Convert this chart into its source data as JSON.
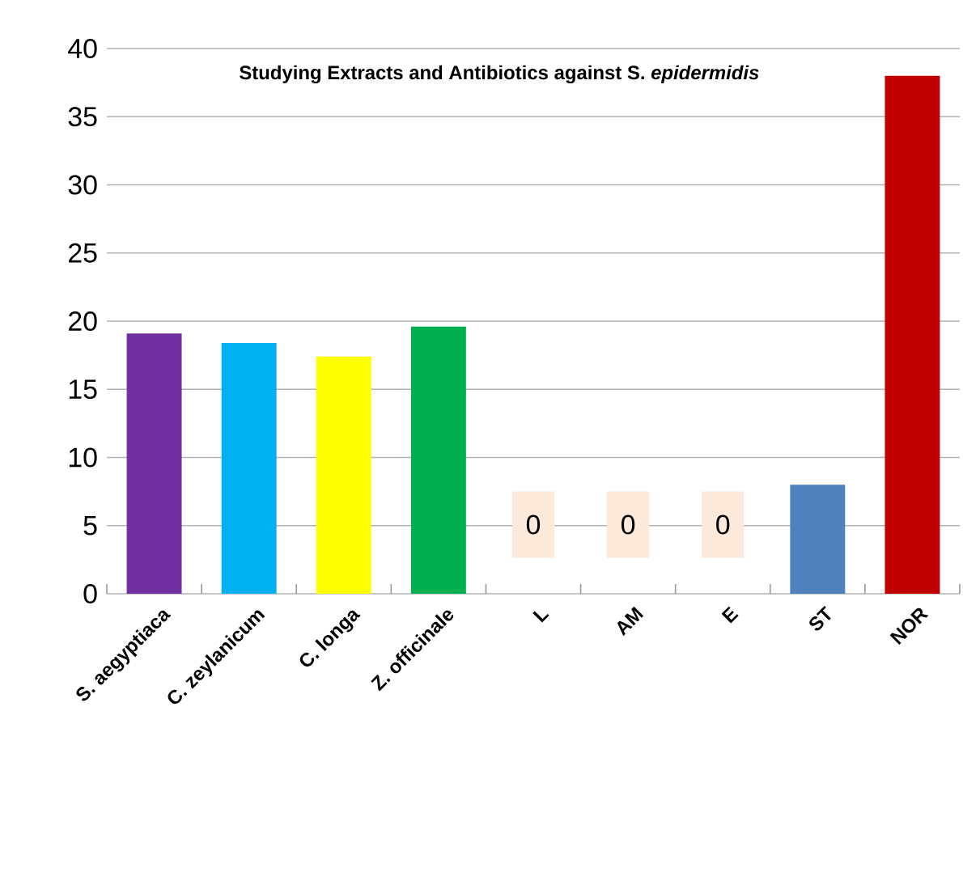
{
  "chart_data": {
    "type": "bar",
    "title": "Studying Extracts and Antibiotics against S. *epidermidis*",
    "categories": [
      "S. aegyptiaca",
      "C. zeylanicum",
      "C. longa",
      "Z. officinale",
      "L",
      "AM",
      "E",
      "ST",
      "NOR"
    ],
    "values": [
      19.1,
      18.4,
      17.4,
      19.6,
      0,
      0,
      0,
      8.0,
      38
    ],
    "colors": [
      "#7030a0",
      "#00b0f0",
      "#ffff00",
      "#00b050",
      "#4f81bd",
      "#4f81bd",
      "#4f81bd",
      "#4f81bd",
      "#c00000"
    ],
    "value_labels": [
      null,
      null,
      null,
      null,
      "0",
      "0",
      "0",
      null,
      null
    ],
    "ylim": [
      0,
      40
    ],
    "yticks": [
      0,
      5,
      10,
      15,
      20,
      25,
      30,
      35,
      40
    ],
    "grid": "y"
  }
}
